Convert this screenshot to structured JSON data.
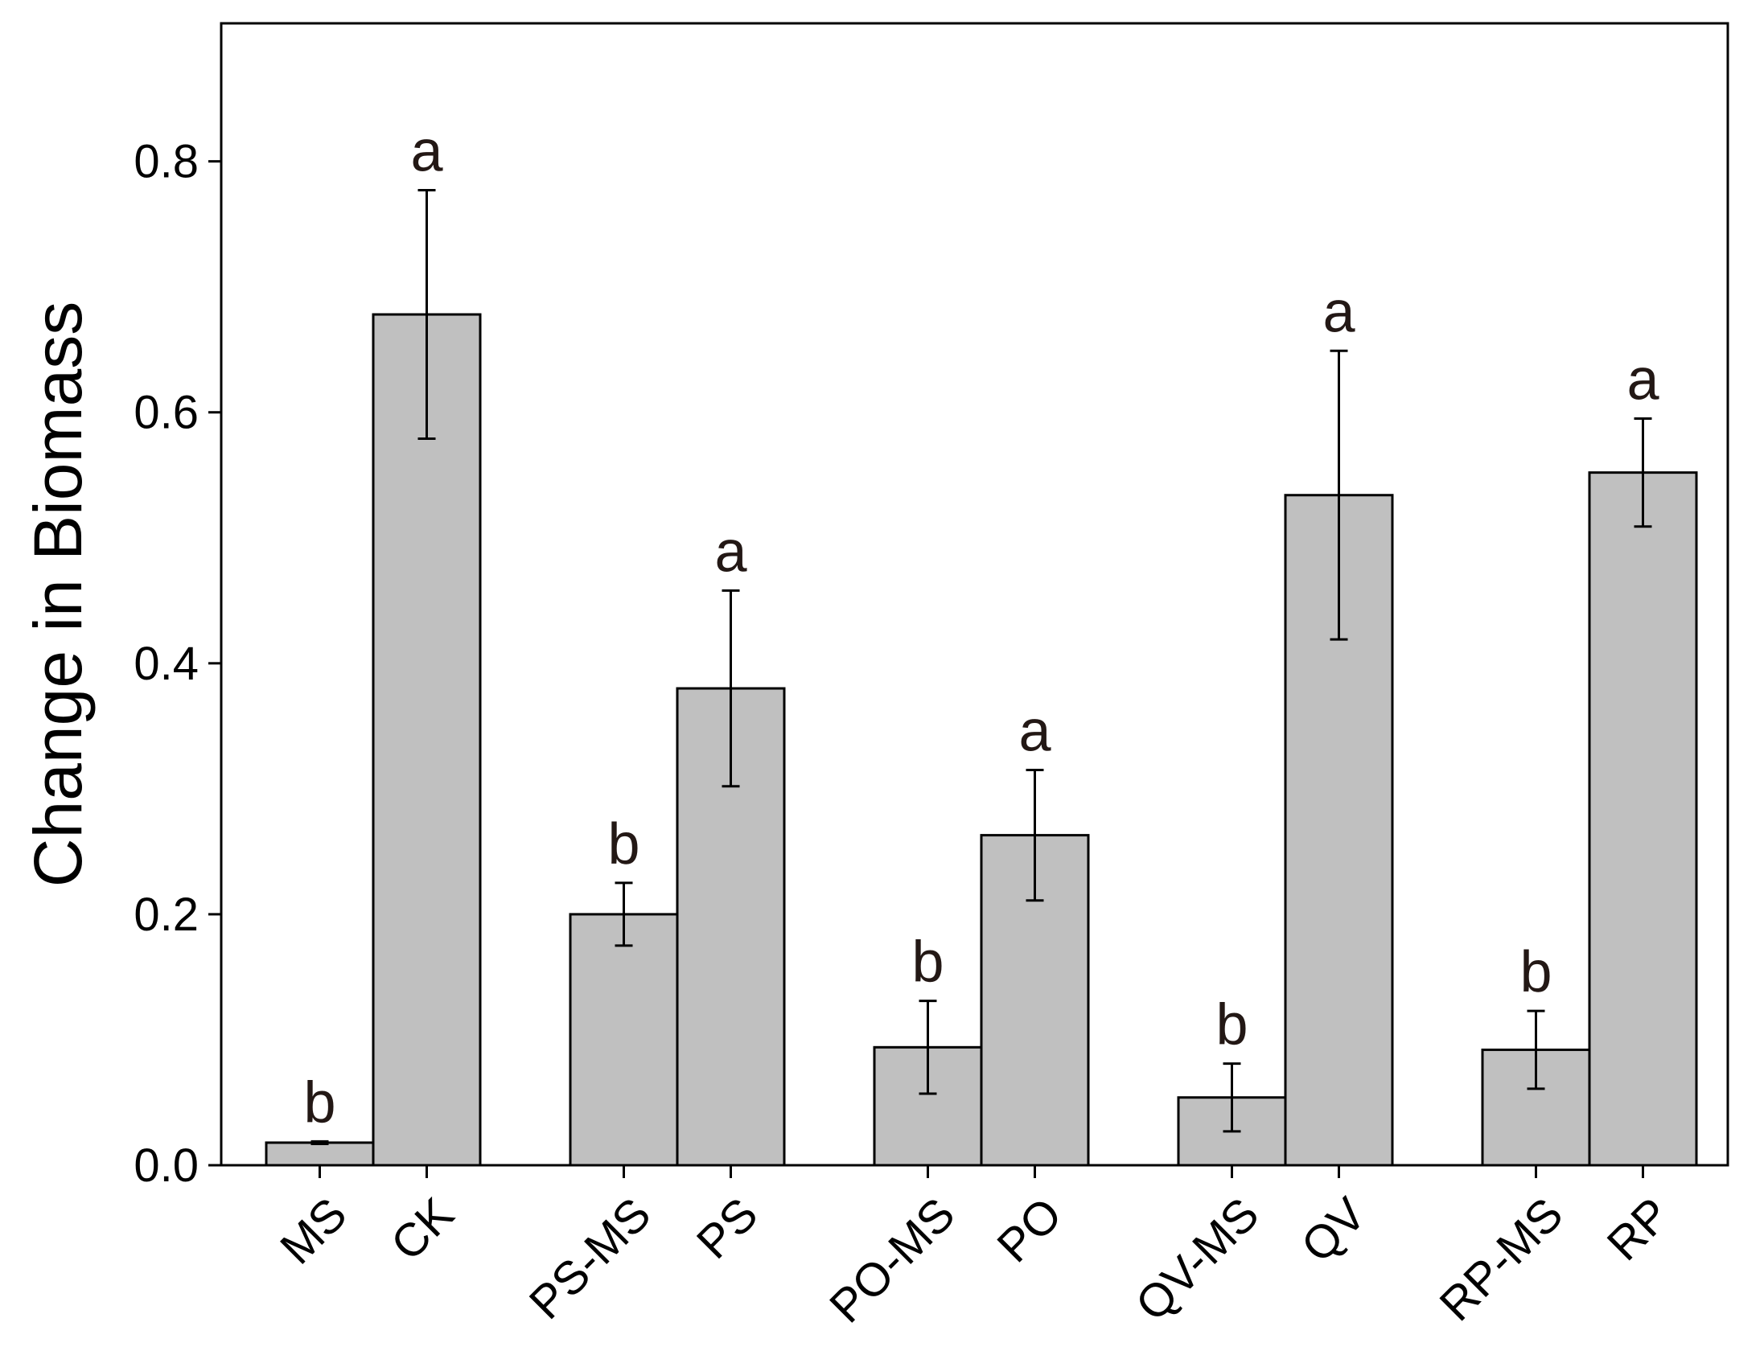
{
  "chart_data": {
    "type": "bar",
    "title": "",
    "xlabel": "",
    "ylabel": "Change in Biomass",
    "ylim": [
      0,
      0.91
    ],
    "yticks": [
      0.0,
      0.2,
      0.4,
      0.6,
      0.8
    ],
    "ytick_labels": [
      "0.0",
      "0.2",
      "0.4",
      "0.6",
      "0.8"
    ],
    "grid": false,
    "legend": "none",
    "bar_color": "#c0c0c0",
    "categories": [
      "MS",
      "CK",
      "PS-MS",
      "PS",
      "PO-MS",
      "PO",
      "QV-MS",
      "QV",
      "RP-MS",
      "RP"
    ],
    "groups": [
      [
        0,
        1
      ],
      [
        2,
        3
      ],
      [
        4,
        5
      ],
      [
        6,
        7
      ],
      [
        8,
        9
      ]
    ],
    "values": [
      0.018,
      0.678,
      0.2,
      0.38,
      0.094,
      0.263,
      0.054,
      0.534,
      0.092,
      0.552
    ],
    "error": [
      0.001,
      0.099,
      0.025,
      0.078,
      0.037,
      0.052,
      0.027,
      0.115,
      0.031,
      0.043
    ],
    "significance": [
      "b",
      "a",
      "b",
      "a",
      "b",
      "a",
      "b",
      "a",
      "b",
      "a"
    ]
  }
}
